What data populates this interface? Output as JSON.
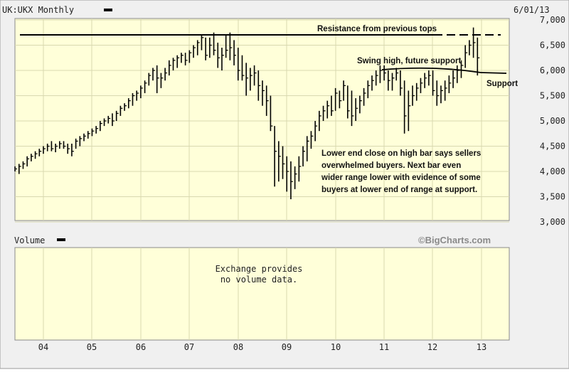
{
  "header": {
    "symbol": "UK:UKX Monthly",
    "date": "6/01/13"
  },
  "volume_panel": {
    "title": "Volume",
    "message_line1": "Exchange provides",
    "message_line2": "no volume data."
  },
  "watermark": "©BigCharts.com",
  "colors": {
    "plot_bg": "#ffffd9",
    "grid": "#d8d8b0",
    "panel_bg": "#f0f0f0",
    "bars": "#000000"
  },
  "chart_data": {
    "type": "ohlc",
    "x_tick_labels": [
      "04",
      "05",
      "06",
      "07",
      "08",
      "09",
      "10",
      "11",
      "12",
      "13"
    ],
    "y_tick_labels": [
      "7,000",
      "6,500",
      "6,000",
      "5,500",
      "5,000",
      "4,500",
      "4,000",
      "3,500",
      "3,000"
    ],
    "ylim": [
      3000,
      7000
    ],
    "grid": true,
    "annotations": {
      "resistance": "Resistance from previous tops",
      "swing_high": "Swing high, future support",
      "support": "Support",
      "note_lines": [
        "Lower end close on high bar says sellers",
        "overwhelmed buyers.  Next bar even",
        "wider range lower with evidence of some",
        "buyers at lower end of range at support."
      ]
    },
    "resistance_level": 6750,
    "start": "2003-06",
    "bars": [
      [
        4100,
        4000,
        4050
      ],
      [
        4150,
        3950,
        4100
      ],
      [
        4200,
        4050,
        4150
      ],
      [
        4300,
        4100,
        4250
      ],
      [
        4350,
        4200,
        4300
      ],
      [
        4400,
        4250,
        4350
      ],
      [
        4450,
        4300,
        4400
      ],
      [
        4500,
        4350,
        4450
      ],
      [
        4550,
        4400,
        4500
      ],
      [
        4600,
        4400,
        4450
      ],
      [
        4550,
        4380,
        4500
      ],
      [
        4600,
        4450,
        4550
      ],
      [
        4600,
        4450,
        4500
      ],
      [
        4550,
        4350,
        4450
      ],
      [
        4550,
        4300,
        4400
      ],
      [
        4650,
        4450,
        4600
      ],
      [
        4700,
        4500,
        4650
      ],
      [
        4750,
        4600,
        4700
      ],
      [
        4800,
        4650,
        4750
      ],
      [
        4850,
        4700,
        4800
      ],
      [
        4900,
        4750,
        4850
      ],
      [
        5000,
        4800,
        4950
      ],
      [
        5050,
        4900,
        5000
      ],
      [
        5100,
        4950,
        5050
      ],
      [
        5150,
        4900,
        5000
      ],
      [
        5200,
        5000,
        5150
      ],
      [
        5300,
        5100,
        5250
      ],
      [
        5350,
        5200,
        5300
      ],
      [
        5450,
        5250,
        5400
      ],
      [
        5550,
        5300,
        5500
      ],
      [
        5600,
        5400,
        5550
      ],
      [
        5700,
        5450,
        5650
      ],
      [
        5800,
        5550,
        5750
      ],
      [
        5950,
        5700,
        5900
      ],
      [
        6050,
        5800,
        6000
      ],
      [
        6100,
        5550,
        5850
      ],
      [
        5950,
        5650,
        5850
      ],
      [
        6050,
        5800,
        5950
      ],
      [
        6200,
        5900,
        6100
      ],
      [
        6250,
        6000,
        6200
      ],
      [
        6300,
        6050,
        6250
      ],
      [
        6350,
        6150,
        6300
      ],
      [
        6350,
        6100,
        6200
      ],
      [
        6400,
        6150,
        6350
      ],
      [
        6500,
        6250,
        6450
      ],
      [
        6600,
        6300,
        6550
      ],
      [
        6700,
        6400,
        6650
      ],
      [
        6650,
        6200,
        6300
      ],
      [
        6650,
        6250,
        6500
      ],
      [
        6750,
        6300,
        6400
      ],
      [
        6550,
        6050,
        6250
      ],
      [
        6450,
        6000,
        6300
      ],
      [
        6700,
        6250,
        6400
      ],
      [
        6750,
        6200,
        6450
      ],
      [
        6600,
        6100,
        6300
      ],
      [
        6450,
        5800,
        6000
      ],
      [
        6300,
        5800,
        5900
      ],
      [
        6150,
        5500,
        5850
      ],
      [
        6050,
        5600,
        5900
      ],
      [
        6100,
        5700,
        5950
      ],
      [
        6000,
        5400,
        5700
      ],
      [
        5800,
        5300,
        5600
      ],
      [
        5700,
        5100,
        5400
      ],
      [
        5500,
        4800,
        4900
      ],
      [
        4900,
        3700,
        4400
      ],
      [
        4600,
        3800,
        4300
      ],
      [
        4500,
        3850,
        4150
      ],
      [
        4300,
        3600,
        4000
      ],
      [
        4200,
        3450,
        3800
      ],
      [
        4100,
        3650,
        3950
      ],
      [
        4300,
        3800,
        4100
      ],
      [
        4500,
        4100,
        4400
      ],
      [
        4700,
        4200,
        4600
      ],
      [
        4800,
        4450,
        4700
      ],
      [
        5000,
        4600,
        4900
      ],
      [
        5200,
        4800,
        5100
      ],
      [
        5300,
        5000,
        5200
      ],
      [
        5400,
        5050,
        5300
      ],
      [
        5500,
        5100,
        5200
      ],
      [
        5650,
        5200,
        5550
      ],
      [
        5600,
        5250,
        5400
      ],
      [
        5800,
        5400,
        5700
      ],
      [
        5700,
        5050,
        5200
      ],
      [
        5600,
        4900,
        5100
      ],
      [
        5450,
        5000,
        5250
      ],
      [
        5500,
        5150,
        5400
      ],
      [
        5650,
        5300,
        5550
      ],
      [
        5800,
        5450,
        5700
      ],
      [
        5900,
        5600,
        5800
      ],
      [
        6000,
        5700,
        5900
      ],
      [
        6100,
        5750,
        6000
      ],
      [
        6100,
        5800,
        5950
      ],
      [
        6000,
        5600,
        5800
      ],
      [
        5950,
        5600,
        5850
      ],
      [
        6050,
        5800,
        5950
      ],
      [
        6000,
        5500,
        5650
      ],
      [
        5800,
        4750,
        5100
      ],
      [
        5600,
        4800,
        5300
      ],
      [
        5700,
        5300,
        5500
      ],
      [
        5750,
        5400,
        5650
      ],
      [
        5850,
        5550,
        5750
      ],
      [
        5950,
        5650,
        5850
      ],
      [
        6000,
        5700,
        5900
      ],
      [
        6000,
        5500,
        5600
      ],
      [
        5800,
        5300,
        5500
      ],
      [
        5700,
        5350,
        5600
      ],
      [
        5800,
        5400,
        5650
      ],
      [
        5900,
        5550,
        5750
      ],
      [
        6000,
        5650,
        5850
      ],
      [
        6100,
        5750,
        6000
      ],
      [
        6200,
        5850,
        6100
      ],
      [
        6500,
        6050,
        6350
      ],
      [
        6600,
        6300,
        6500
      ],
      [
        6850,
        6250,
        6550
      ],
      [
        6650,
        5900,
        6250
      ]
    ]
  }
}
